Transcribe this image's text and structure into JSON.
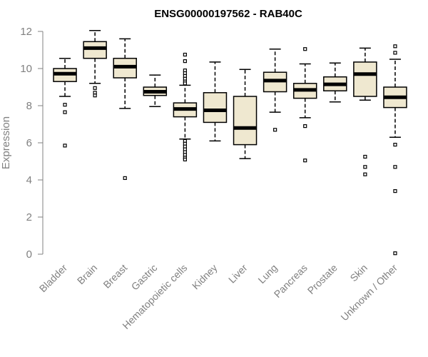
{
  "chart_data": {
    "type": "boxplot",
    "title": "ENSG00000197562 - RAB40C",
    "ylabel": "Expression",
    "xlabel": "",
    "ylim": [
      0,
      12
    ],
    "yticks": [
      0,
      2,
      4,
      6,
      8,
      10,
      12
    ],
    "colors": {
      "box_fill": "#efe8d0",
      "box_stroke": "#000000",
      "median": "#000000",
      "axis": "#808080",
      "text": "#808080"
    },
    "categories": [
      "Bladder",
      "Brain",
      "Breast",
      "Gastric",
      "Hematopoietic cells",
      "Kidney",
      "Liver",
      "Lung",
      "Pancreas",
      "Prostate",
      "Skin",
      "Unknown / Other"
    ],
    "boxes": [
      {
        "name": "Bladder",
        "whisker_low": 8.5,
        "q1": 9.3,
        "median": 9.72,
        "q3": 10.0,
        "whisker_high": 10.55,
        "outliers": [
          8.05,
          7.65,
          5.85
        ]
      },
      {
        "name": "Brain",
        "whisker_low": 9.2,
        "q1": 10.55,
        "median": 11.1,
        "q3": 11.45,
        "whisker_high": 12.05,
        "outliers": [
          8.95,
          8.7,
          8.55
        ]
      },
      {
        "name": "Breast",
        "whisker_low": 7.85,
        "q1": 9.5,
        "median": 10.1,
        "q3": 10.55,
        "whisker_high": 11.6,
        "outliers": [
          4.1
        ]
      },
      {
        "name": "Gastric",
        "whisker_low": 7.95,
        "q1": 8.55,
        "median": 8.75,
        "q3": 9.0,
        "whisker_high": 9.65,
        "outliers": []
      },
      {
        "name": "Hematopoietic cells",
        "whisker_low": 6.2,
        "q1": 7.4,
        "median": 7.82,
        "q3": 8.15,
        "whisker_high": 9.1,
        "outliers": [
          10.75,
          10.4,
          9.9,
          9.75,
          9.6,
          9.45,
          9.3,
          9.2,
          6.1,
          5.95,
          5.8,
          5.65,
          5.5,
          5.35,
          5.2,
          5.1
        ]
      },
      {
        "name": "Kidney",
        "whisker_low": 6.1,
        "q1": 7.1,
        "median": 7.75,
        "q3": 8.7,
        "whisker_high": 10.35,
        "outliers": []
      },
      {
        "name": "Liver",
        "whisker_low": 5.15,
        "q1": 5.9,
        "median": 6.8,
        "q3": 8.5,
        "whisker_high": 9.95,
        "outliers": []
      },
      {
        "name": "Lung",
        "whisker_low": 7.65,
        "q1": 8.75,
        "median": 9.35,
        "q3": 9.8,
        "whisker_high": 11.05,
        "outliers": [
          6.7
        ]
      },
      {
        "name": "Pancreas",
        "whisker_low": 7.35,
        "q1": 8.4,
        "median": 8.85,
        "q3": 9.2,
        "whisker_high": 10.25,
        "outliers": [
          11.05,
          6.9,
          5.05
        ]
      },
      {
        "name": "Prostate",
        "whisker_low": 8.2,
        "q1": 8.8,
        "median": 9.15,
        "q3": 9.55,
        "whisker_high": 10.3,
        "outliers": []
      },
      {
        "name": "Skin",
        "whisker_low": 8.3,
        "q1": 8.5,
        "median": 9.7,
        "q3": 10.35,
        "whisker_high": 11.1,
        "outliers": [
          5.25,
          4.7,
          4.3
        ]
      },
      {
        "name": "Unknown / Other",
        "whisker_low": 6.3,
        "q1": 7.9,
        "median": 8.45,
        "q3": 9.0,
        "whisker_high": 10.5,
        "outliers": [
          11.2,
          10.85,
          5.9,
          4.7,
          3.4,
          0.05
        ]
      }
    ]
  }
}
